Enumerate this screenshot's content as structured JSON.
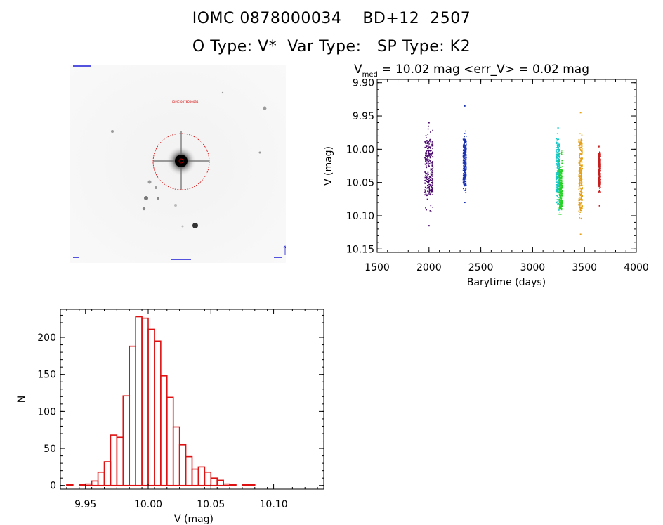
{
  "header": {
    "line1": "IOMC 0878000034    BD+12  2507",
    "line2": "O Type: V*  Var Type:   SP Type: K2"
  },
  "thumbnail": {
    "target_label": "IOMC-0878000034"
  },
  "colors": {
    "histogram": "#dd1111",
    "circle": "#d40000",
    "labels": "#1b1bd6",
    "series": [
      "#4b0a6e",
      "#1932b4",
      "#14c8c8",
      "#28d228",
      "#e6a014",
      "#c81e1e"
    ]
  },
  "chart_data": [
    {
      "type": "scatter",
      "title_parts": {
        "v": "V",
        "sub": "med",
        "rest": " = 10.02 mag <err_V> = 0.02 mag"
      },
      "xlabel": "Barytime (days)",
      "ylabel": "V (mag)",
      "xlim": [
        1500,
        4000
      ],
      "ylim": [
        10.155,
        9.895
      ],
      "y_inverted": true,
      "xticks": [
        1500,
        2000,
        2500,
        3000,
        3500,
        4000
      ],
      "yticks": [
        9.9,
        9.95,
        10.0,
        10.05,
        10.1,
        10.15
      ],
      "ytick_labels": [
        "9.90",
        "9.95",
        "10.00",
        "10.05",
        "10.10",
        "10.15"
      ],
      "clusters": [
        {
          "x_range": [
            1960,
            2040
          ],
          "y_range": [
            9.965,
            10.095
          ],
          "core": [
            9.985,
            10.07
          ],
          "color": "#4b0a6e",
          "outliers": [
            10.115,
            9.96
          ]
        },
        {
          "x_range": [
            2330,
            2360
          ],
          "y_range": [
            9.97,
            10.065
          ],
          "core": [
            9.985,
            10.055
          ],
          "color": "#1932b4",
          "outliers": [
            9.935,
            10.08
          ]
        },
        {
          "x_range": [
            3230,
            3260
          ],
          "y_range": [
            9.975,
            10.095
          ],
          "core": [
            9.99,
            10.065
          ],
          "color": "#14c8c8",
          "outliers": [
            9.968
          ]
        },
        {
          "x_range": [
            3255,
            3285
          ],
          "y_range": [
            10.0,
            10.1
          ],
          "core": [
            10.03,
            10.09
          ],
          "color": "#28d228",
          "outliers": []
        },
        {
          "x_range": [
            3445,
            3480
          ],
          "y_range": [
            9.975,
            10.105
          ],
          "core": [
            9.985,
            10.09
          ],
          "color": "#e6a014",
          "outliers": [
            9.945,
            10.128
          ]
        },
        {
          "x_range": [
            3635,
            3655
          ],
          "y_range": [
            9.995,
            10.065
          ],
          "core": [
            10.005,
            10.055
          ],
          "color": "#c81e1e",
          "outliers": [
            10.085
          ]
        }
      ]
    },
    {
      "type": "bar",
      "histogram": true,
      "xlabel": "V (mag)",
      "ylabel": "N",
      "xlim": [
        9.93,
        10.14
      ],
      "ylim": [
        -5,
        238
      ],
      "xticks": [
        9.95,
        10.0,
        10.05,
        10.1
      ],
      "xtick_labels": [
        "9.95",
        "10.00",
        "10.05",
        "10.10"
      ],
      "yticks": [
        0,
        50,
        100,
        150,
        200
      ],
      "bin_start": 9.935,
      "bin_width": 0.005,
      "counts": [
        1,
        0,
        1,
        2,
        6,
        18,
        32,
        68,
        65,
        121,
        188,
        228,
        226,
        211,
        195,
        148,
        119,
        79,
        55,
        39,
        22,
        25,
        18,
        10,
        7,
        2,
        1,
        0,
        1,
        1
      ]
    }
  ]
}
